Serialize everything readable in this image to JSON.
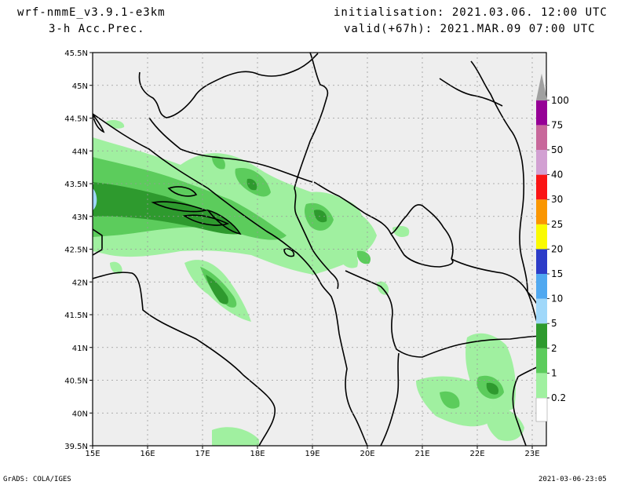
{
  "header": {
    "model": "wrf-nmmE_v3.9.1-e3km",
    "field": "3-h Acc.Prec.",
    "init": "initialisation: 2021.03.06. 12:00 UTC",
    "valid": "valid(+67h): 2021.MAR.09 07:00 UTC"
  },
  "footer": {
    "left": "GrADS: COLA/IGES",
    "right": "2021-03-06-23:05"
  },
  "map": {
    "lat_labels": [
      "45.5N",
      "45N",
      "44.5N",
      "44N",
      "43.5N",
      "43N",
      "42.5N",
      "42N",
      "41.5N",
      "41N",
      "40.5N",
      "40N",
      "39.5N"
    ],
    "lon_labels": [
      "15E",
      "16E",
      "17E",
      "18E",
      "19E",
      "20E",
      "21E",
      "22E",
      "23E"
    ]
  },
  "colorbar": {
    "levels": [
      "0.2",
      "1",
      "2",
      "5",
      "10",
      "15",
      "20",
      "25",
      "30",
      "40",
      "50",
      "75",
      "100"
    ],
    "colors": [
      "#a0f0a0",
      "#5ccc5c",
      "#2e9a2e",
      "#a0d8fa",
      "#50a8f0",
      "#2c3cc8",
      "#fafa00",
      "#fa9600",
      "#fa1414",
      "#d2a0d2",
      "#c8689b",
      "#960096",
      "#a0a0a0"
    ]
  }
}
